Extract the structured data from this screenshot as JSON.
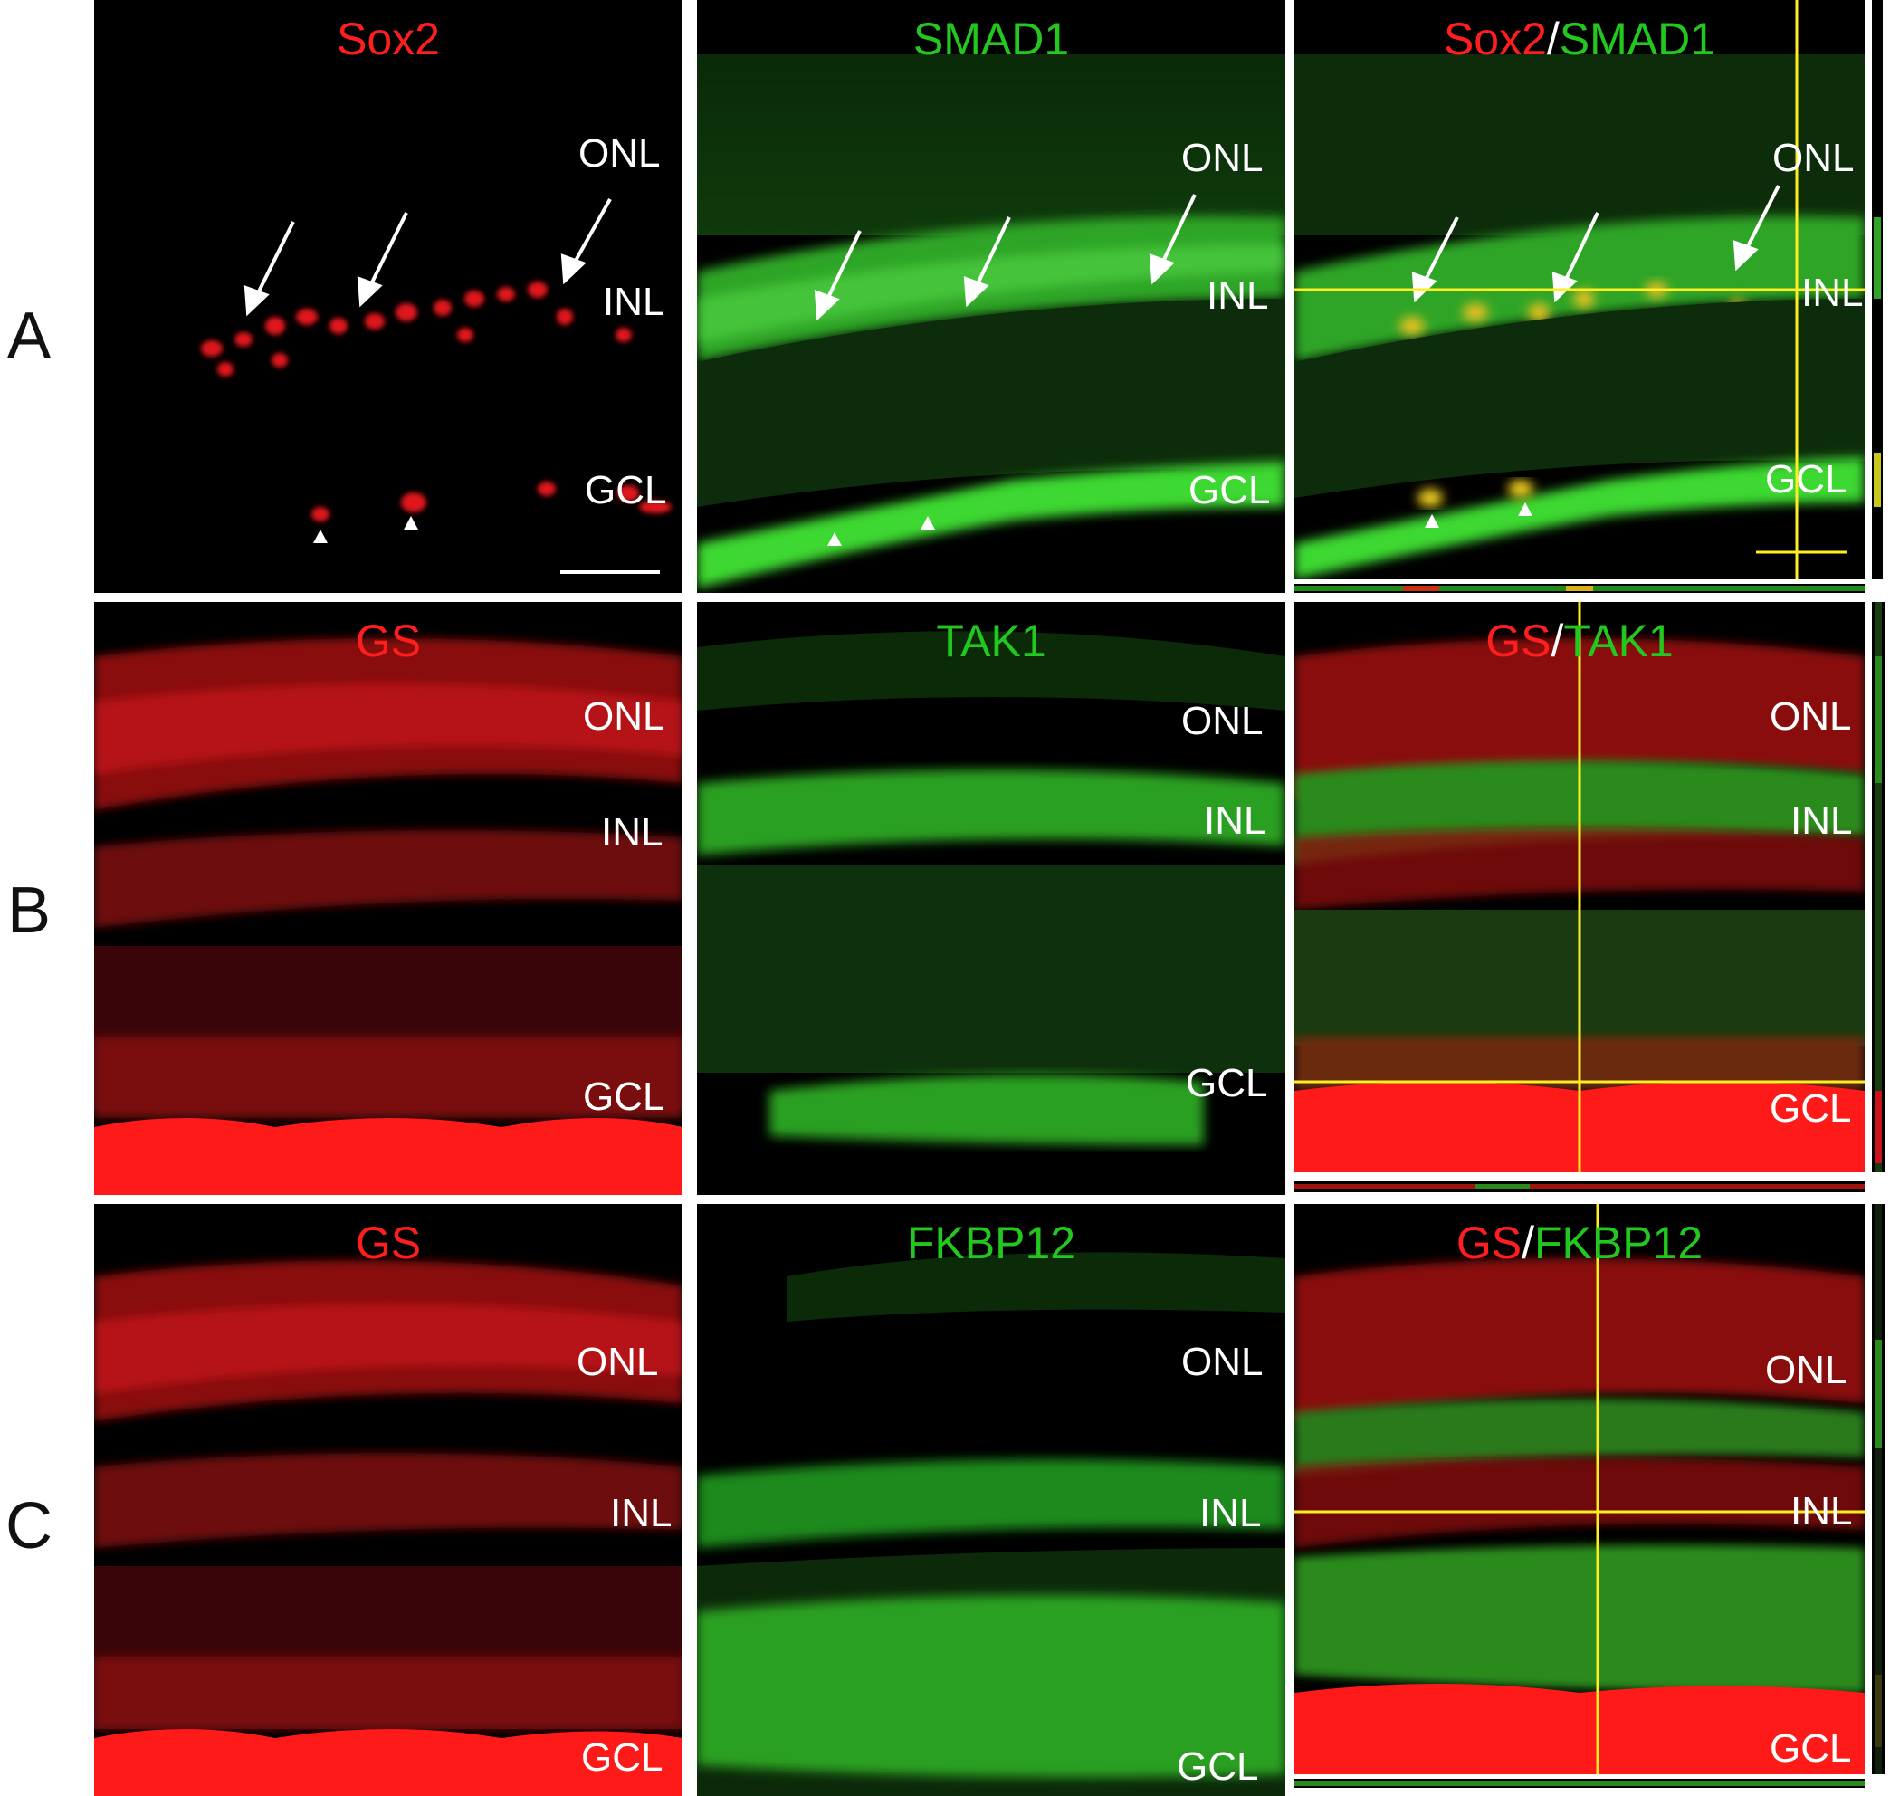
{
  "rows": [
    {
      "letter": "A",
      "panels": [
        {
          "title": [
            {
              "text": "Sox2",
              "color": "red"
            }
          ],
          "layers": {
            "onl": "ONL",
            "inl": "INL",
            "gcl": "GCL"
          }
        },
        {
          "title": [
            {
              "text": "SMAD1",
              "color": "green"
            }
          ],
          "layers": {
            "onl": "ONL",
            "inl": "INL",
            "gcl": "GCL"
          }
        },
        {
          "title": [
            {
              "text": "Sox2",
              "color": "red"
            },
            {
              "text": "/",
              "color": "white"
            },
            {
              "text": "SMAD1",
              "color": "green"
            }
          ],
          "layers": {
            "onl": "ONL",
            "inl": "INL",
            "gcl": "GCL"
          }
        }
      ]
    },
    {
      "letter": "B",
      "panels": [
        {
          "title": [
            {
              "text": "GS",
              "color": "red"
            }
          ],
          "layers": {
            "onl": "ONL",
            "inl": "INL",
            "gcl": "GCL"
          }
        },
        {
          "title": [
            {
              "text": "TAK1",
              "color": "green"
            }
          ],
          "layers": {
            "onl": "ONL",
            "inl": "INL",
            "gcl": "GCL"
          }
        },
        {
          "title": [
            {
              "text": "GS",
              "color": "red"
            },
            {
              "text": "/",
              "color": "white"
            },
            {
              "text": "TAK1",
              "color": "green"
            }
          ],
          "layers": {
            "onl": "ONL",
            "inl": "INL",
            "gcl": "GCL"
          }
        }
      ]
    },
    {
      "letter": "C",
      "panels": [
        {
          "title": [
            {
              "text": "GS",
              "color": "red"
            }
          ],
          "layers": {
            "onl": "ONL",
            "inl": "INL",
            "gcl": "GCL"
          }
        },
        {
          "title": [
            {
              "text": "FKBP12",
              "color": "green"
            }
          ],
          "layers": {
            "onl": "ONL",
            "inl": "INL",
            "gcl": "GCL"
          }
        },
        {
          "title": [
            {
              "text": "GS",
              "color": "red"
            },
            {
              "text": "/",
              "color": "white"
            },
            {
              "text": "FKBP12",
              "color": "green"
            }
          ],
          "layers": {
            "onl": "ONL",
            "inl": "INL",
            "gcl": "GCL"
          }
        }
      ]
    }
  ],
  "colors": {
    "red": "#ff1e1e",
    "green": "#22c81e",
    "crosshair": "#ffee22",
    "background": "#000000"
  }
}
